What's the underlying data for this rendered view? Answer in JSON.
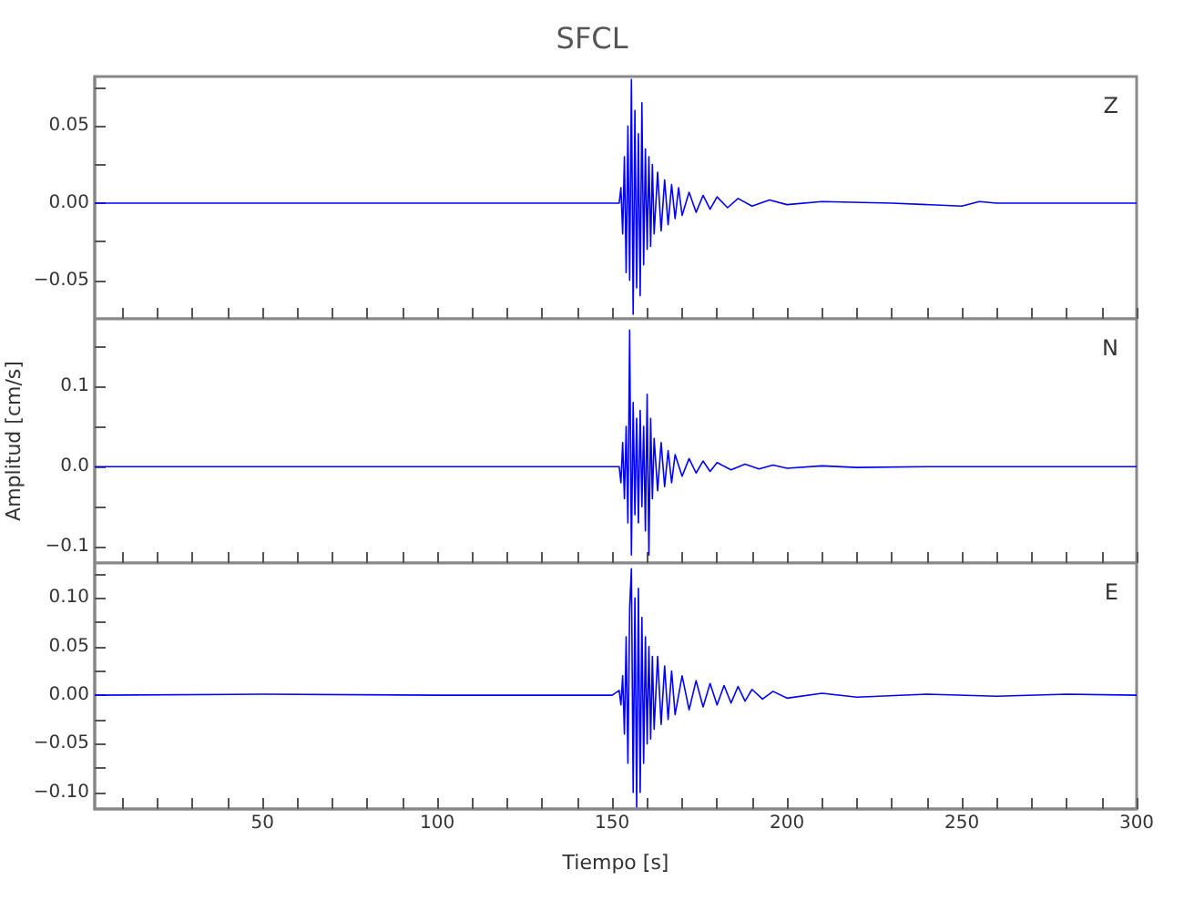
{
  "chart_data": [
    {
      "type": "line",
      "title": "SFCL",
      "annotations": [
        "Z"
      ],
      "tick_labels": "y",
      "xlim": [
        2,
        300
      ],
      "xticks": [
        {
          "value": 10,
          "label": null
        },
        {
          "value": 20,
          "label": null
        },
        {
          "value": 30,
          "label": null
        },
        {
          "value": 40,
          "label": null
        },
        {
          "value": 50,
          "label": null
        },
        {
          "value": 60,
          "label": null
        },
        {
          "value": 70,
          "label": null
        },
        {
          "value": 80,
          "label": null
        },
        {
          "value": 90,
          "label": null
        },
        {
          "value": 100,
          "label": null
        },
        {
          "value": 110,
          "label": null
        },
        {
          "value": 120,
          "label": null
        },
        {
          "value": 130,
          "label": null
        },
        {
          "value": 140,
          "label": null
        },
        {
          "value": 150,
          "label": null
        },
        {
          "value": 160,
          "label": null
        },
        {
          "value": 170,
          "label": null
        },
        {
          "value": 180,
          "label": null
        },
        {
          "value": 190,
          "label": null
        },
        {
          "value": 200,
          "label": null
        },
        {
          "value": 210,
          "label": null
        },
        {
          "value": 220,
          "label": null
        },
        {
          "value": 230,
          "label": null
        },
        {
          "value": 240,
          "label": null
        },
        {
          "value": 250,
          "label": null
        },
        {
          "value": 260,
          "label": null
        },
        {
          "value": 270,
          "label": null
        },
        {
          "value": 280,
          "label": null
        },
        {
          "value": 290,
          "label": null
        },
        {
          "value": 300,
          "label": null
        }
      ],
      "ylim": [
        -0.075,
        0.082
      ],
      "yticks": [
        {
          "value": -0.05,
          "label": "−0.05"
        },
        {
          "value": -0.025,
          "label": null
        },
        {
          "value": 0,
          "label": "0.00"
        },
        {
          "value": 0.025,
          "label": null
        },
        {
          "value": 0.05,
          "label": "0.05"
        },
        {
          "value": 0.075,
          "label": null
        }
      ],
      "x": [
        2,
        60,
        120,
        152,
        152.5,
        153,
        153.5,
        154,
        154.5,
        155,
        155.5,
        156,
        156.5,
        157,
        157.5,
        158,
        158.5,
        159,
        159.5,
        160,
        160.5,
        161,
        161.5,
        162,
        163,
        164,
        165,
        166,
        167,
        168,
        169,
        170,
        172,
        174,
        176,
        178,
        180,
        183,
        186,
        190,
        195,
        200,
        210,
        230,
        250,
        255,
        260,
        300
      ],
      "series": [
        {
          "color": "#0000ff",
          "values": [
            0,
            0,
            0,
            0,
            0.01,
            -0.02,
            0.03,
            -0.045,
            0.05,
            -0.05,
            0.08,
            -0.072,
            0.06,
            -0.055,
            0.045,
            -0.06,
            0.065,
            -0.04,
            0.035,
            -0.03,
            0.03,
            -0.028,
            0.025,
            -0.02,
            0.02,
            -0.018,
            0.015,
            -0.014,
            0.012,
            -0.01,
            0.01,
            -0.008,
            0.007,
            -0.006,
            0.005,
            -0.004,
            0.004,
            -0.003,
            0.003,
            -0.002,
            0.002,
            -0.001,
            0.001,
            0,
            -0.002,
            0.001,
            0,
            0
          ]
        }
      ]
    },
    {
      "type": "line",
      "ylabel": "Amplitud [cm/s]",
      "annotations": [
        "N"
      ],
      "tick_labels": "y",
      "xlim": [
        2,
        300
      ],
      "xticks": [
        {
          "value": 10,
          "label": null
        },
        {
          "value": 20,
          "label": null
        },
        {
          "value": 30,
          "label": null
        },
        {
          "value": 40,
          "label": null
        },
        {
          "value": 50,
          "label": null
        },
        {
          "value": 60,
          "label": null
        },
        {
          "value": 70,
          "label": null
        },
        {
          "value": 80,
          "label": null
        },
        {
          "value": 90,
          "label": null
        },
        {
          "value": 100,
          "label": null
        },
        {
          "value": 110,
          "label": null
        },
        {
          "value": 120,
          "label": null
        },
        {
          "value": 130,
          "label": null
        },
        {
          "value": 140,
          "label": null
        },
        {
          "value": 150,
          "label": null
        },
        {
          "value": 160,
          "label": null
        },
        {
          "value": 170,
          "label": null
        },
        {
          "value": 180,
          "label": null
        },
        {
          "value": 190,
          "label": null
        },
        {
          "value": 200,
          "label": null
        },
        {
          "value": 210,
          "label": null
        },
        {
          "value": 220,
          "label": null
        },
        {
          "value": 230,
          "label": null
        },
        {
          "value": 240,
          "label": null
        },
        {
          "value": 250,
          "label": null
        },
        {
          "value": 260,
          "label": null
        },
        {
          "value": 270,
          "label": null
        },
        {
          "value": 280,
          "label": null
        },
        {
          "value": 290,
          "label": null
        },
        {
          "value": 300,
          "label": null
        }
      ],
      "ylim": [
        -0.12,
        0.184
      ],
      "yticks": [
        {
          "value": -0.1,
          "label": "−0.1"
        },
        {
          "value": -0.05,
          "label": null
        },
        {
          "value": 0,
          "label": "0.0"
        },
        {
          "value": 0.05,
          "label": null
        },
        {
          "value": 0.1,
          "label": "0.1"
        },
        {
          "value": 0.15,
          "label": null
        }
      ],
      "x": [
        2,
        80,
        150,
        152,
        152.5,
        153,
        153.5,
        154,
        154.5,
        155,
        155.5,
        156,
        156.5,
        157,
        157.5,
        158,
        158.5,
        159,
        159.5,
        160,
        160.5,
        161,
        161.5,
        162,
        163,
        164,
        165,
        166,
        167,
        168,
        170,
        172,
        174,
        176,
        178,
        180,
        184,
        188,
        192,
        196,
        200,
        210,
        220,
        240,
        300
      ],
      "series": [
        {
          "color": "#0000ff",
          "values": [
            0,
            0,
            0,
            0,
            -0.02,
            0.03,
            -0.04,
            0.05,
            -0.07,
            0.17,
            -0.11,
            0.08,
            -0.06,
            0.06,
            -0.07,
            0.07,
            -0.05,
            0.05,
            -0.08,
            0.09,
            -0.11,
            0.06,
            -0.04,
            0.035,
            -0.03,
            0.03,
            -0.025,
            0.02,
            -0.02,
            0.015,
            -0.012,
            0.01,
            -0.008,
            0.007,
            -0.006,
            0.005,
            -0.004,
            0.003,
            -0.003,
            0.002,
            -0.002,
            0.001,
            -0.001,
            0,
            0
          ]
        }
      ]
    },
    {
      "type": "line",
      "xlabel": "Tiempo [s]",
      "annotations": [
        "E"
      ],
      "xlim": [
        2,
        300
      ],
      "xticks": [
        {
          "value": 10,
          "label": null
        },
        {
          "value": 20,
          "label": null
        },
        {
          "value": 30,
          "label": null
        },
        {
          "value": 40,
          "label": null
        },
        50,
        {
          "value": 60,
          "label": null
        },
        {
          "value": 70,
          "label": null
        },
        {
          "value": 80,
          "label": null
        },
        {
          "value": 90,
          "label": null
        },
        100,
        {
          "value": 110,
          "label": null
        },
        {
          "value": 120,
          "label": null
        },
        {
          "value": 130,
          "label": null
        },
        {
          "value": 140,
          "label": null
        },
        150,
        {
          "value": 160,
          "label": null
        },
        {
          "value": 170,
          "label": null
        },
        {
          "value": 180,
          "label": null
        },
        {
          "value": 190,
          "label": null
        },
        200,
        {
          "value": 210,
          "label": null
        },
        {
          "value": 220,
          "label": null
        },
        {
          "value": 230,
          "label": null
        },
        {
          "value": 240,
          "label": null
        },
        250,
        {
          "value": 260,
          "label": null
        },
        {
          "value": 270,
          "label": null
        },
        {
          "value": 280,
          "label": null
        },
        {
          "value": 290,
          "label": null
        },
        300
      ],
      "ylim": [
        -0.117,
        0.136
      ],
      "yticks": [
        {
          "value": -0.1,
          "label": "−0.10"
        },
        {
          "value": -0.075,
          "label": null
        },
        {
          "value": -0.05,
          "label": "−0.05"
        },
        {
          "value": -0.025,
          "label": null
        },
        {
          "value": 0,
          "label": "0.00"
        },
        {
          "value": 0.025,
          "label": null
        },
        {
          "value": 0.05,
          "label": "0.05"
        },
        {
          "value": 0.075,
          "label": null
        },
        {
          "value": 0.1,
          "label": "0.10"
        },
        {
          "value": 0.125,
          "label": null
        }
      ],
      "x": [
        2,
        50,
        100,
        150,
        152,
        152.5,
        153,
        153.5,
        154,
        154.5,
        155,
        155.5,
        156,
        156.5,
        157,
        157.5,
        158,
        158.5,
        159,
        159.5,
        160,
        160.5,
        161,
        161.5,
        162,
        163,
        164,
        165,
        166,
        167,
        168,
        170,
        172,
        174,
        176,
        178,
        180,
        182,
        184,
        186,
        188,
        190,
        193,
        196,
        200,
        210,
        220,
        240,
        260,
        280,
        300
      ],
      "series": [
        {
          "color": "#0000ff",
          "values": [
            0,
            0.001,
            0,
            0,
            0.005,
            -0.01,
            0.02,
            -0.04,
            0.06,
            -0.07,
            0.09,
            0.13,
            -0.1,
            0.1,
            -0.115,
            0.11,
            -0.1,
            0.08,
            -0.07,
            0.06,
            -0.05,
            0.05,
            -0.045,
            0.04,
            -0.035,
            0.04,
            -0.03,
            0.03,
            -0.025,
            0.025,
            -0.02,
            0.02,
            -0.015,
            0.015,
            -0.012,
            0.012,
            -0.01,
            0.01,
            -0.008,
            0.009,
            -0.006,
            0.006,
            -0.004,
            0.004,
            -0.003,
            0.002,
            -0.002,
            0.001,
            -0.001,
            0.001,
            0
          ]
        }
      ]
    }
  ]
}
